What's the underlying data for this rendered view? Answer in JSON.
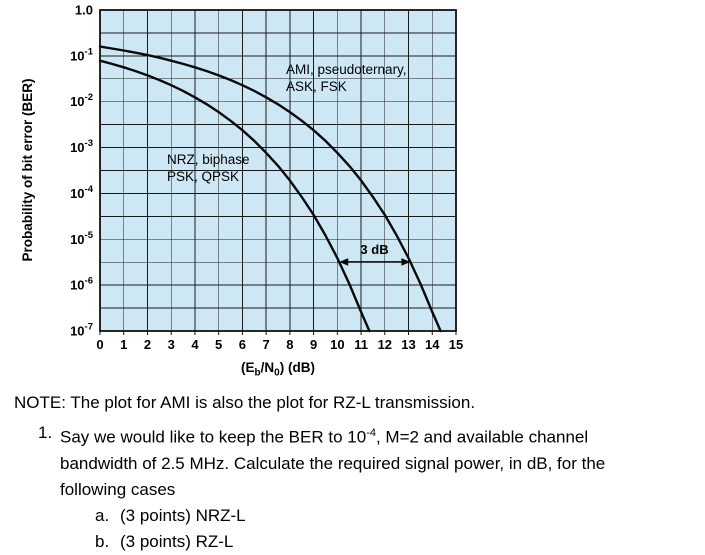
{
  "chart_data": {
    "type": "line",
    "title": "",
    "ylabel": "Probability of bit error (BER)",
    "xlabel_parts": [
      "(E",
      "b",
      "/N",
      "0",
      ") (dB)"
    ],
    "xlim": [
      0,
      15
    ],
    "decades": 7,
    "grid": true,
    "plot_bg": "#cde8f4",
    "x_ticks": [
      0,
      1,
      2,
      3,
      4,
      5,
      6,
      7,
      8,
      9,
      10,
      11,
      12,
      13,
      14,
      15
    ],
    "y_ticks": [
      {
        "base": "1.0",
        "exp": ""
      },
      {
        "base": "10",
        "exp": "-1"
      },
      {
        "base": "10",
        "exp": "-2"
      },
      {
        "base": "10",
        "exp": "-3"
      },
      {
        "base": "10",
        "exp": "-4"
      },
      {
        "base": "10",
        "exp": "-5"
      },
      {
        "base": "10",
        "exp": "-6"
      },
      {
        "base": "10",
        "exp": "-7"
      }
    ],
    "series": [
      {
        "name": "NRZ, biphase, PSK, QPSK",
        "label_lines": [
          "NRZ, biphase",
          "PSK, QPSK"
        ],
        "points": [
          [
            0,
            0.0786
          ],
          [
            0.5,
            0.0668
          ],
          [
            1,
            0.0563
          ],
          [
            1.5,
            0.0464
          ],
          [
            2,
            0.0375
          ],
          [
            2.5,
            0.0297
          ],
          [
            3,
            0.0229
          ],
          [
            3.5,
            0.0172
          ],
          [
            4,
            0.0125
          ],
          [
            4.5,
            0.0088
          ],
          [
            5,
            0.00595
          ],
          [
            5.5,
            0.00386
          ],
          [
            6,
            0.00239
          ],
          [
            6.5,
            0.0014
          ],
          [
            7,
            0.00077
          ],
          [
            7.5,
            0.0004
          ],
          [
            8,
            0.000191
          ],
          [
            8.5,
            8.4e-05
          ],
          [
            9,
            3.4e-05
          ],
          [
            9.5,
            1.21e-05
          ],
          [
            10,
            3.9e-06
          ],
          [
            10.5,
            1.08e-06
          ],
          [
            11,
            2.6e-07
          ],
          [
            11.35,
            1e-07
          ]
        ]
      },
      {
        "name": "AMI, pseudoternary, ASK, FSK",
        "label_lines": [
          "AMI, pseudoternary,",
          "ASK, FSK"
        ],
        "points": [
          [
            0,
            0.159
          ],
          [
            0.5,
            0.145
          ],
          [
            1,
            0.131
          ],
          [
            1.5,
            0.117
          ],
          [
            2,
            0.104
          ],
          [
            2.5,
            0.091
          ],
          [
            3,
            0.0786
          ],
          [
            3.5,
            0.0668
          ],
          [
            4,
            0.0563
          ],
          [
            4.5,
            0.0464
          ],
          [
            5,
            0.0375
          ],
          [
            5.5,
            0.0297
          ],
          [
            6,
            0.0229
          ],
          [
            6.5,
            0.0172
          ],
          [
            7,
            0.0125
          ],
          [
            7.5,
            0.0088
          ],
          [
            8,
            0.00595
          ],
          [
            8.5,
            0.00386
          ],
          [
            9,
            0.00239
          ],
          [
            9.5,
            0.0014
          ],
          [
            10,
            0.00077
          ],
          [
            10.5,
            0.0004
          ],
          [
            11,
            0.000191
          ],
          [
            11.5,
            8.4e-05
          ],
          [
            12,
            3.4e-05
          ],
          [
            12.5,
            1.21e-05
          ],
          [
            13,
            3.9e-06
          ],
          [
            13.5,
            1.08e-06
          ],
          [
            14,
            2.6e-07
          ],
          [
            14.35,
            1e-07
          ]
        ]
      }
    ],
    "annotation": {
      "text": "3 dB",
      "y_ber": 3.2e-06,
      "x_from": 10.08,
      "x_to": 13.08
    }
  },
  "note": {
    "text": "NOTE: The plot for AMI is also the plot for RZ-L transmission."
  },
  "question": {
    "number": "1.",
    "part1": "Say we would like to keep the BER to 10",
    "exponent": "-4",
    "part2": ", M=2 and available channel bandwidth of 2.5 MHz. Calculate the required signal power, in dB, for the following cases",
    "items": [
      {
        "label": "a.",
        "text": "(3 points) NRZ-L"
      },
      {
        "label": "b.",
        "text": "(3 points) RZ-L"
      }
    ]
  }
}
